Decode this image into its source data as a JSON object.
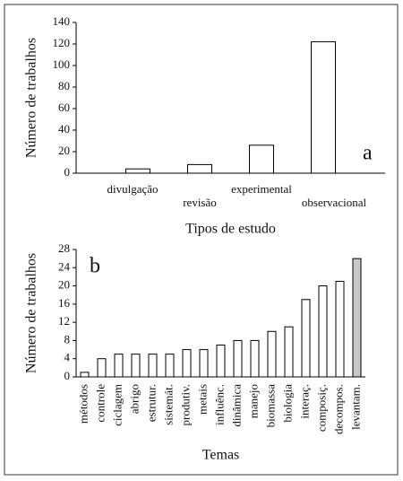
{
  "chart_data": [
    {
      "type": "bar",
      "panel_label": "a",
      "x_label": "Tipos de estudo",
      "y_label": "Número de trabalhos",
      "categories": [
        "divulgação",
        "revisão",
        "experimental",
        "observacional"
      ],
      "values": [
        4,
        8,
        26,
        122
      ],
      "colors": [
        "#ffffff",
        "#ffffff",
        "#ffffff",
        "#ffffff"
      ],
      "ylim": [
        0,
        140
      ],
      "yticks": [
        0,
        20,
        40,
        60,
        80,
        100,
        120,
        140
      ]
    },
    {
      "type": "bar",
      "panel_label": "b",
      "x_label": "Temas",
      "y_label": "Número de trabalhos",
      "categories": [
        "métodos",
        "controle",
        "ciclagem",
        "abrigo",
        "estrutur.",
        "sistemát.",
        "produtiv.",
        "metais",
        "influênc.",
        "dinâmica",
        "manejo",
        "biomassa",
        "biologia",
        "interaç.",
        "composiç.",
        "decompos.",
        "levantam."
      ],
      "values": [
        1,
        4,
        5,
        5,
        5,
        5,
        6,
        6,
        7,
        8,
        8,
        10,
        11,
        17,
        20,
        21,
        26
      ],
      "colors": [
        "#ffffff",
        "#ffffff",
        "#ffffff",
        "#ffffff",
        "#ffffff",
        "#ffffff",
        "#ffffff",
        "#ffffff",
        "#ffffff",
        "#ffffff",
        "#ffffff",
        "#ffffff",
        "#ffffff",
        "#ffffff",
        "#ffffff",
        "#ffffff",
        "#c8c8c8"
      ],
      "ylim": [
        0,
        28
      ],
      "yticks": [
        0,
        4,
        8,
        12,
        16,
        20,
        24,
        28
      ]
    }
  ]
}
